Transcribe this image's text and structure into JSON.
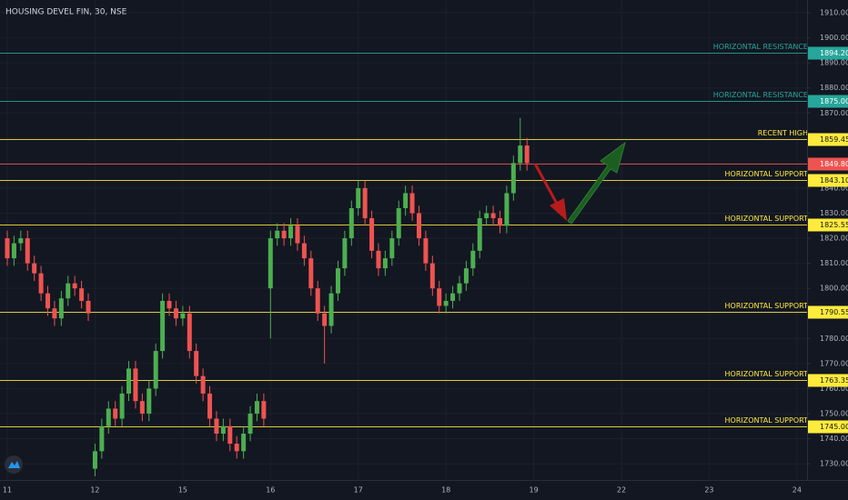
{
  "chart_data": {
    "type": "candlestick",
    "title": "HOUSING DEVEL FIN, 30, NSE",
    "up_color": "#4caf50",
    "down_color": "#ef5350",
    "grid": true,
    "ylim": [
      1723.5,
      1915.1
    ],
    "yticks": [
      {
        "value": 1730,
        "label": "1730.00"
      },
      {
        "value": 1740,
        "label": "1740.00"
      },
      {
        "value": 1750,
        "label": "1750.00"
      },
      {
        "value": 1760,
        "label": "1760.00"
      },
      {
        "value": 1770,
        "label": "1770.00"
      },
      {
        "value": 1780,
        "label": "1780.00"
      },
      {
        "value": 1790,
        "label": "1790.00"
      },
      {
        "value": 1800,
        "label": "1800.00"
      },
      {
        "value": 1810,
        "label": "1810.00"
      },
      {
        "value": 1820,
        "label": "1820.00"
      },
      {
        "value": 1830,
        "label": "1830.00"
      },
      {
        "value": 1840,
        "label": "1840.00"
      },
      {
        "value": 1850,
        "label": "1850.00"
      },
      {
        "value": 1860,
        "label": "1860.00"
      },
      {
        "value": 1870,
        "label": "1870.00"
      },
      {
        "value": 1880,
        "label": "1880.00"
      },
      {
        "value": 1890,
        "label": "1890.00"
      },
      {
        "value": 1900,
        "label": "1900.00"
      },
      {
        "value": 1910,
        "label": "1910.00"
      }
    ],
    "xlim": [
      -1.08,
      118.5
    ],
    "xticks": [
      {
        "value": 0,
        "label": "11"
      },
      {
        "value": 13,
        "label": "12"
      },
      {
        "value": 26,
        "label": "15"
      },
      {
        "value": 39,
        "label": "16"
      },
      {
        "value": 52,
        "label": "17"
      },
      {
        "value": 65,
        "label": "18"
      },
      {
        "value": 78,
        "label": "19"
      },
      {
        "value": 91,
        "label": "22"
      },
      {
        "value": 104,
        "label": "23"
      },
      {
        "value": 117,
        "label": "24"
      }
    ],
    "open": [
      1820,
      1812,
      1818,
      1820,
      1810,
      1806,
      1798,
      1792,
      1788,
      1796,
      1802,
      1800,
      1795,
      1728,
      1735,
      1745,
      1752,
      1748,
      1758,
      1768,
      1755,
      1750,
      1760,
      1775,
      1795,
      1792,
      1788,
      1790,
      1775,
      1765,
      1758,
      1748,
      1742,
      1745,
      1738,
      1735,
      1742,
      1750,
      1755,
      1800,
      1820,
      1823,
      1820,
      1825,
      1818,
      1812,
      1800,
      1790,
      1785,
      1798,
      1808,
      1820,
      1832,
      1840,
      1828,
      1815,
      1808,
      1812,
      1820,
      1832,
      1838,
      1830,
      1820,
      1810,
      1800,
      1793,
      1795,
      1798,
      1802,
      1808,
      1815,
      1828,
      1830,
      1828,
      1825,
      1838,
      1850,
      1857
    ],
    "high": [
      1823,
      1821,
      1823,
      1823,
      1813,
      1809,
      1801,
      1795,
      1799,
      1805,
      1805,
      1803,
      1798,
      1738,
      1748,
      1755,
      1755,
      1761,
      1771,
      1771,
      1758,
      1763,
      1778,
      1798,
      1798,
      1795,
      1793,
      1793,
      1778,
      1768,
      1761,
      1751,
      1748,
      1748,
      1741,
      1745,
      1753,
      1758,
      1758,
      1823,
      1826,
      1826,
      1828,
      1828,
      1821,
      1815,
      1803,
      1793,
      1801,
      1811,
      1823,
      1835,
      1843,
      1843,
      1831,
      1818,
      1815,
      1823,
      1835,
      1841,
      1841,
      1833,
      1823,
      1813,
      1803,
      1798,
      1801,
      1805,
      1811,
      1818,
      1831,
      1833,
      1833,
      1831,
      1841,
      1853,
      1868,
      1860
    ],
    "low": [
      1809,
      1809,
      1815,
      1807,
      1803,
      1795,
      1789,
      1785,
      1785,
      1793,
      1797,
      1792,
      1787,
      1725,
      1732,
      1742,
      1745,
      1745,
      1755,
      1752,
      1747,
      1747,
      1757,
      1772,
      1789,
      1785,
      1785,
      1772,
      1762,
      1755,
      1745,
      1739,
      1739,
      1735,
      1732,
      1732,
      1739,
      1747,
      1745,
      1780,
      1817,
      1817,
      1817,
      1815,
      1809,
      1797,
      1787,
      1770,
      1782,
      1795,
      1805,
      1817,
      1829,
      1825,
      1812,
      1805,
      1805,
      1809,
      1817,
      1829,
      1827,
      1817,
      1807,
      1797,
      1790,
      1790,
      1792,
      1795,
      1799,
      1805,
      1812,
      1825,
      1825,
      1822,
      1822,
      1835,
      1847,
      1847
    ],
    "close": [
      1812,
      1818,
      1820,
      1810,
      1806,
      1798,
      1792,
      1788,
      1796,
      1802,
      1800,
      1795,
      1790,
      1735,
      1745,
      1752,
      1748,
      1758,
      1768,
      1755,
      1750,
      1760,
      1775,
      1795,
      1792,
      1788,
      1790,
      1775,
      1765,
      1758,
      1748,
      1742,
      1745,
      1738,
      1735,
      1742,
      1750,
      1755,
      1748,
      1820,
      1823,
      1820,
      1825,
      1818,
      1812,
      1800,
      1790,
      1785,
      1798,
      1808,
      1820,
      1832,
      1840,
      1828,
      1815,
      1808,
      1812,
      1820,
      1832,
      1838,
      1830,
      1820,
      1810,
      1800,
      1793,
      1795,
      1798,
      1802,
      1808,
      1815,
      1828,
      1830,
      1828,
      1825,
      1838,
      1850,
      1857,
      1850
    ],
    "price_lines": [
      {
        "label": "HORIZONTAL RESISTANCE",
        "value": 1894.2,
        "value_label": "1894.20",
        "color": "#26a69a",
        "label_color": "#26a69a",
        "box_text_color": "#ffffff"
      },
      {
        "label": "HORIZONTAL RESISTANCE",
        "value": 1875,
        "value_label": "1875.00",
        "color": "#26a69a",
        "label_color": "#26a69a",
        "box_text_color": "#ffffff"
      },
      {
        "label": "RECENT HIGH",
        "value": 1859.45,
        "value_label": "1859.45",
        "color": "#ffeb3b",
        "label_color": "#ffeb3b",
        "box_text_color": "#131722"
      },
      {
        "value": 1849.8,
        "value_label": "1849.80",
        "color": "#ef5350",
        "box_text_color": "#ffffff"
      },
      {
        "label": "HORIZONTAL SUPPORT",
        "value": 1843.1,
        "value_label": "1843.10",
        "color": "#ffeb3b",
        "label_color": "#ffeb3b",
        "box_text_color": "#131722"
      },
      {
        "label": "HORIZONTAL SUPPORT",
        "value": 1825.55,
        "value_label": "1825.55",
        "color": "#ffeb3b",
        "label_color": "#ffeb3b",
        "box_text_color": "#131722"
      },
      {
        "label": "HORIZONTAL SUPPORT",
        "value": 1790.55,
        "value_label": "1790.55",
        "color": "#ffeb3b",
        "label_color": "#ffeb3b",
        "box_text_color": "#131722"
      },
      {
        "label": "HORIZONTAL SUPPORT",
        "value": 1763.35,
        "value_label": "1763.35",
        "color": "#ffeb3b",
        "label_color": "#ffeb3b",
        "box_text_color": "#131722"
      },
      {
        "label": "HORIZONTAL SUPPORT",
        "value": 1745,
        "value_label": "1745.00",
        "color": "#ffeb3b",
        "label_color": "#ffeb3b",
        "box_text_color": "#131722"
      }
    ]
  }
}
